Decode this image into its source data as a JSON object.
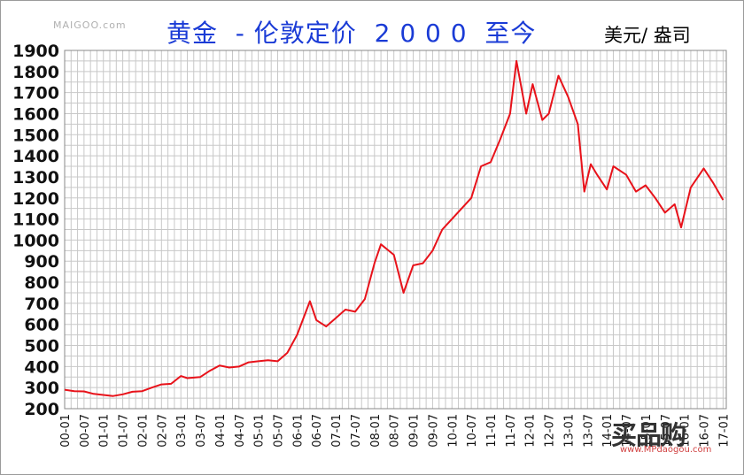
{
  "watermark": "MAIGOO.com",
  "title": "黄金  - 伦敦定价  2 0 0 0  至今",
  "unit": "美元/ 盎司",
  "logo": {
    "text": "买品购",
    "url": "www.MPdaogou.com"
  },
  "colors": {
    "line": "#e8121a",
    "grid": "#c8c8c8",
    "title": "#1a3bd6",
    "axis_text": "#111111"
  },
  "chart_data": {
    "type": "line",
    "title": "黄金  - 伦敦定价  2 0 0 0  至今",
    "ylabel": "美元/ 盎司",
    "ylim": [
      200,
      1900
    ],
    "yticks": [
      200,
      300,
      400,
      500,
      600,
      700,
      800,
      900,
      1000,
      1100,
      1200,
      1300,
      1400,
      1500,
      1600,
      1700,
      1800,
      1900
    ],
    "xticks": [
      "00-01",
      "00-07",
      "01-01",
      "01-07",
      "02-01",
      "02-07",
      "03-01",
      "03-07",
      "04-01",
      "04-07",
      "05-01",
      "05-07",
      "06-01",
      "06-07",
      "07-01",
      "07-07",
      "08-01",
      "08-07",
      "09-01",
      "09-07",
      "10-01",
      "10-07",
      "11-01",
      "11-07",
      "12-01",
      "12-07",
      "13-01",
      "13-07",
      "14-01",
      "14-07",
      "15-01",
      "15-07",
      "16-01",
      "16-07",
      "17-01"
    ],
    "xrange": [
      "2000-01",
      "2017-02"
    ],
    "grid": true,
    "series": [
      {
        "x": [
          "2000-01",
          "2000-04",
          "2000-07",
          "2000-10",
          "2001-01",
          "2001-04",
          "2001-07",
          "2001-10",
          "2002-01",
          "2002-04",
          "2002-07",
          "2002-10",
          "2003-01",
          "2003-03",
          "2003-07",
          "2003-10",
          "2004-01",
          "2004-04",
          "2004-07",
          "2004-10",
          "2005-01",
          "2005-04",
          "2005-07",
          "2005-10",
          "2006-01",
          "2006-05",
          "2006-07",
          "2006-10",
          "2007-01",
          "2007-04",
          "2007-07",
          "2007-10",
          "2008-01",
          "2008-03",
          "2008-07",
          "2008-10",
          "2009-01",
          "2009-04",
          "2009-07",
          "2009-10",
          "2010-01",
          "2010-04",
          "2010-07",
          "2010-10",
          "2011-01",
          "2011-04",
          "2011-07",
          "2011-09",
          "2011-12",
          "2012-02",
          "2012-05",
          "2012-07",
          "2012-10",
          "2013-01",
          "2013-04",
          "2013-06",
          "2013-08",
          "2013-10",
          "2014-01",
          "2014-03",
          "2014-07",
          "2014-10",
          "2015-01",
          "2015-04",
          "2015-07",
          "2015-10",
          "2015-12",
          "2016-03",
          "2016-07",
          "2016-10",
          "2017-01"
        ],
        "values": [
          290,
          283,
          282,
          270,
          265,
          260,
          268,
          280,
          283,
          300,
          315,
          318,
          355,
          345,
          350,
          380,
          405,
          395,
          400,
          420,
          425,
          430,
          425,
          465,
          550,
          710,
          620,
          590,
          630,
          670,
          660,
          720,
          890,
          980,
          930,
          750,
          880,
          890,
          950,
          1050,
          1100,
          1150,
          1200,
          1350,
          1370,
          1480,
          1600,
          1850,
          1600,
          1740,
          1570,
          1600,
          1780,
          1680,
          1550,
          1230,
          1360,
          1310,
          1240,
          1350,
          1310,
          1230,
          1260,
          1200,
          1130,
          1170,
          1060,
          1250,
          1340,
          1270,
          1190
        ]
      }
    ]
  }
}
